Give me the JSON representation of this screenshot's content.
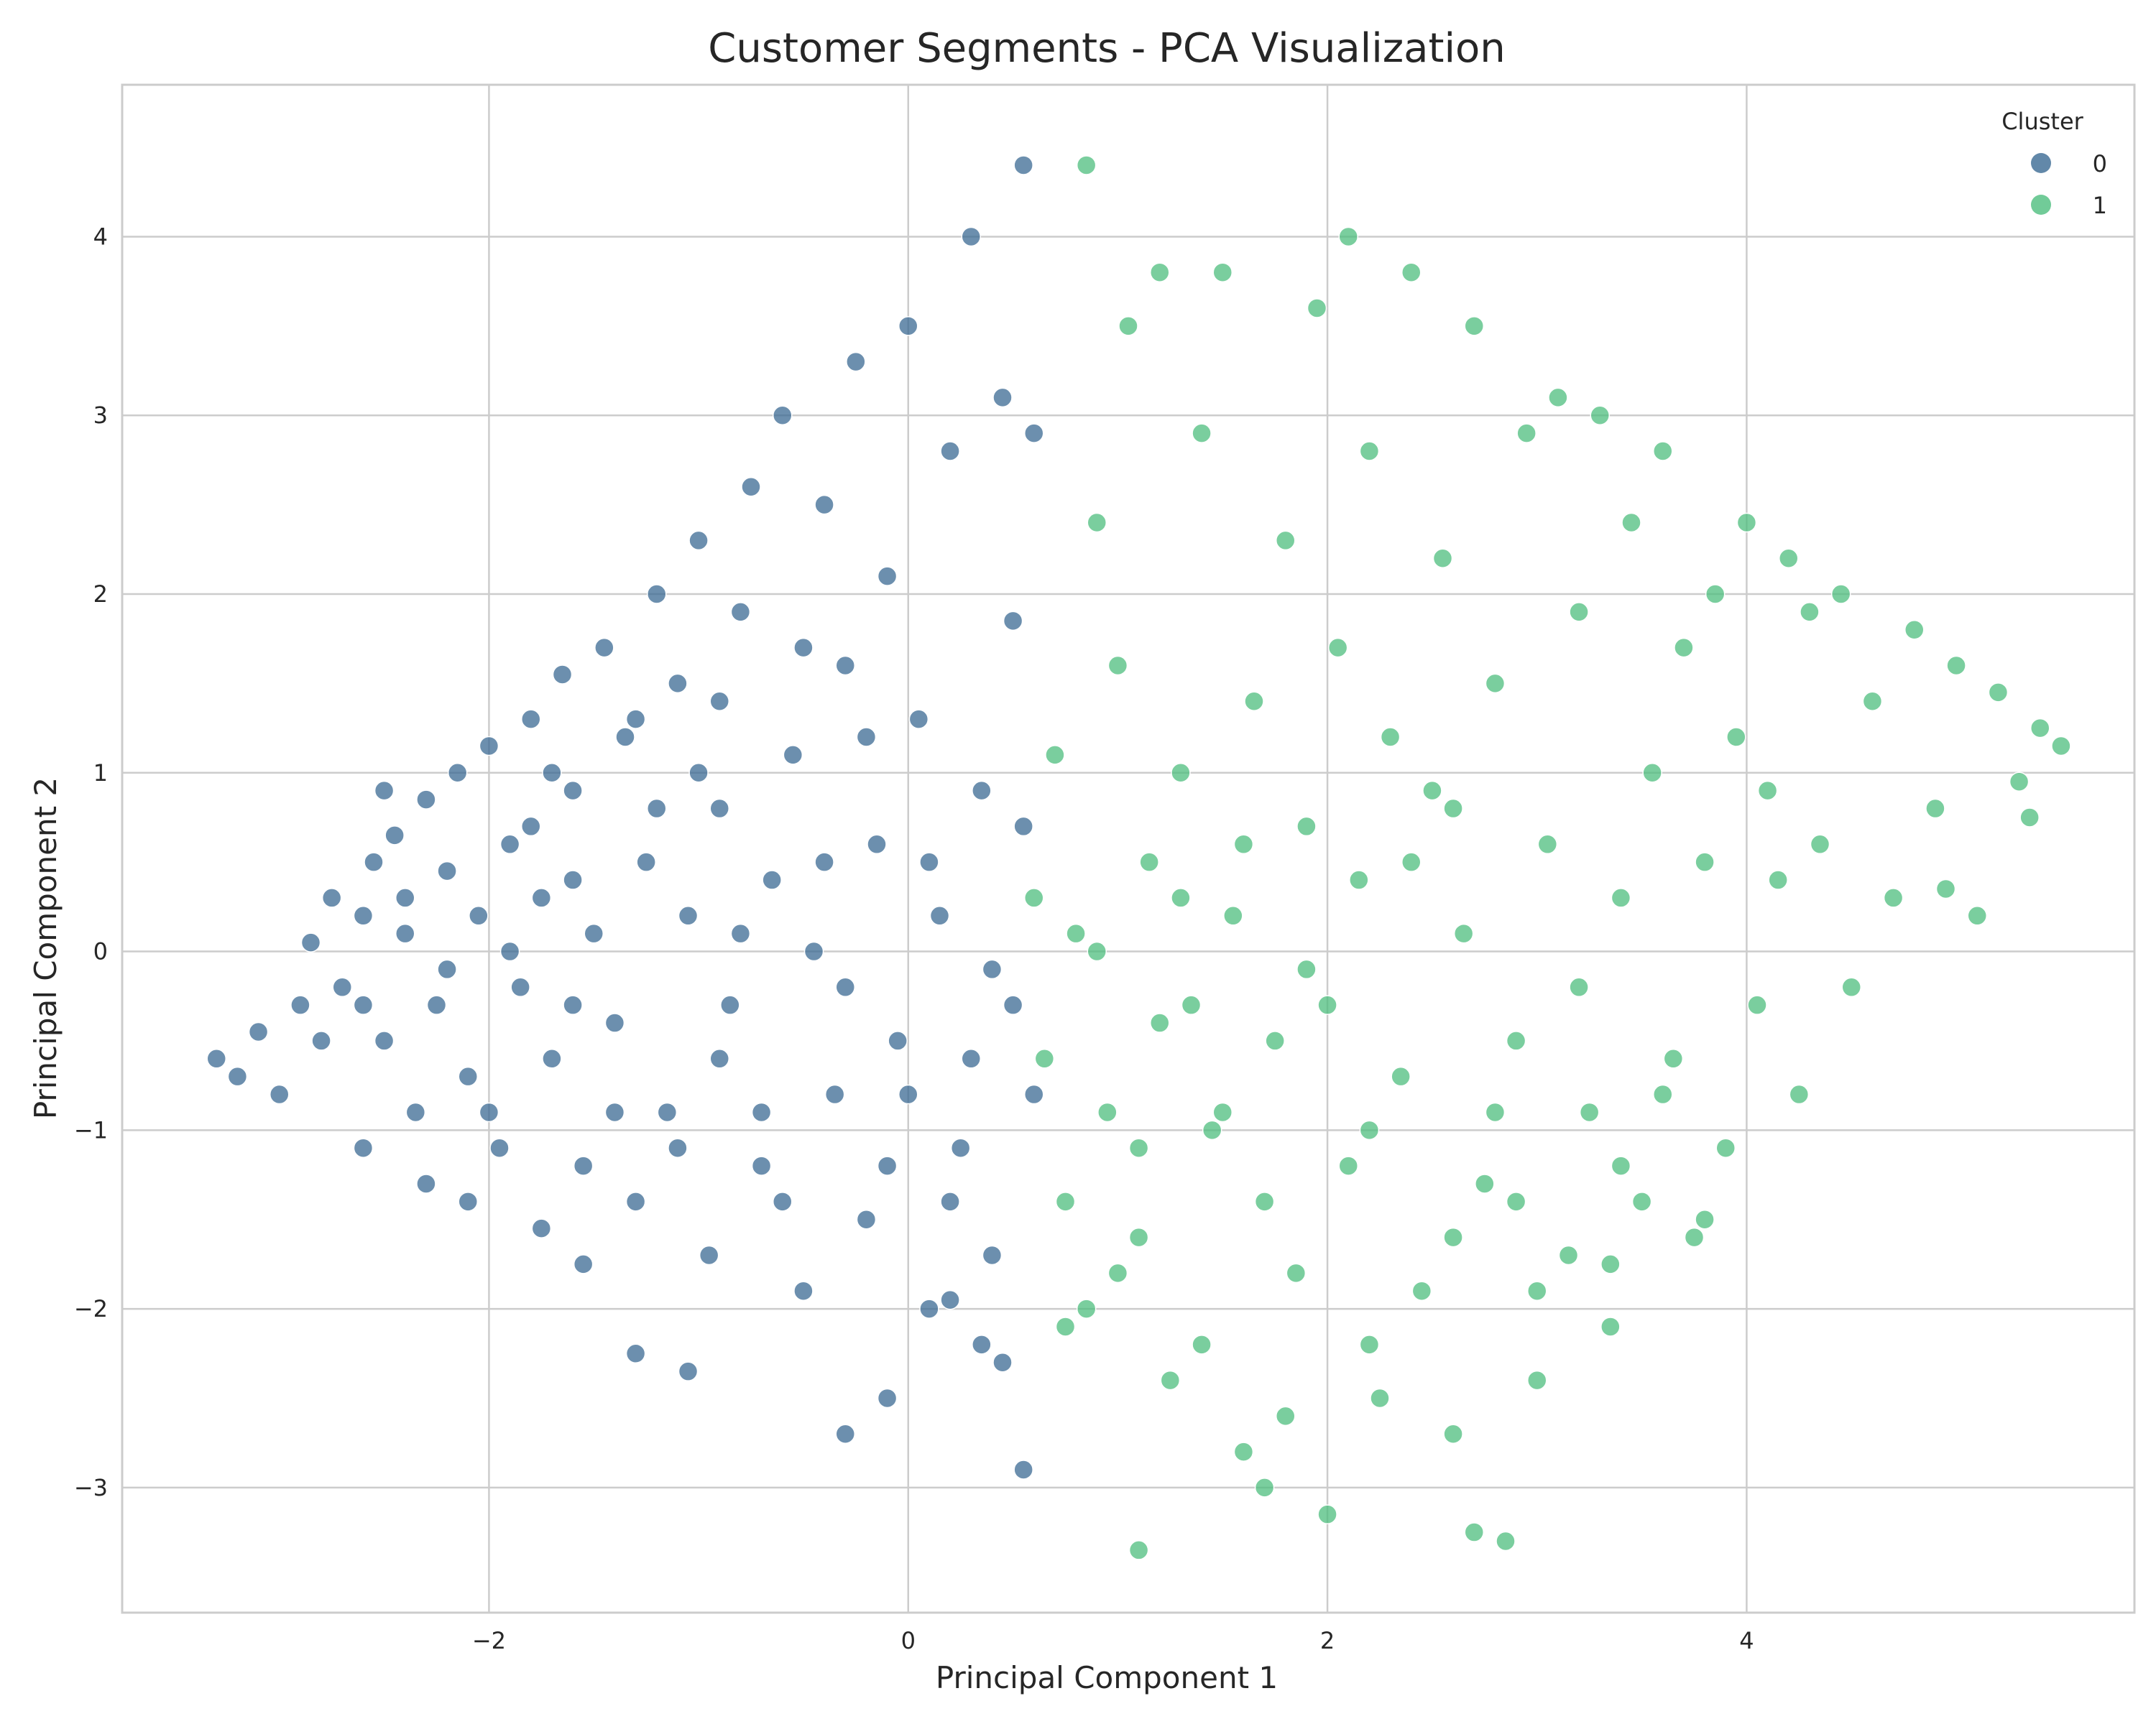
{
  "chart_data": {
    "type": "scatter",
    "title": "Customer Segments - PCA Visualization",
    "xlabel": "Principal Component 1",
    "ylabel": "Principal Component 2",
    "xlim": [
      -3.75,
      5.85
    ],
    "ylim": [
      -3.7,
      4.85
    ],
    "xticks": [
      -2,
      0,
      2,
      4
    ],
    "yticks": [
      -3,
      -2,
      -1,
      0,
      1,
      2,
      3,
      4
    ],
    "xtick_labels": [
      "−2",
      "0",
      "2",
      "4"
    ],
    "ytick_labels": [
      "−3",
      "−2",
      "−1",
      "0",
      "1",
      "2",
      "3",
      "4"
    ],
    "grid": true,
    "legend": {
      "title": "Cluster",
      "placement": "top-right"
    },
    "series": [
      {
        "name": "0",
        "color": "#3b6a93",
        "points": [
          [
            -3.3,
            -0.6
          ],
          [
            -3.2,
            -0.7
          ],
          [
            -3.0,
            -0.8
          ],
          [
            -3.1,
            -0.45
          ],
          [
            -2.9,
            -0.3
          ],
          [
            -2.85,
            0.05
          ],
          [
            -2.75,
            0.3
          ],
          [
            -2.7,
            -0.2
          ],
          [
            -2.6,
            0.2
          ],
          [
            -2.55,
            0.5
          ],
          [
            -2.5,
            -0.5
          ],
          [
            -2.45,
            0.65
          ],
          [
            -2.4,
            0.1
          ],
          [
            -2.35,
            -0.9
          ],
          [
            -2.3,
            0.85
          ],
          [
            -2.25,
            -0.3
          ],
          [
            -2.2,
            0.45
          ],
          [
            -2.15,
            1.0
          ],
          [
            -2.1,
            -0.7
          ],
          [
            -2.05,
            0.2
          ],
          [
            -2.0,
            1.15
          ],
          [
            -1.95,
            -1.1
          ],
          [
            -1.9,
            0.6
          ],
          [
            -1.85,
            -0.2
          ],
          [
            -1.8,
            1.3
          ],
          [
            -1.75,
            0.3
          ],
          [
            -1.7,
            -0.6
          ],
          [
            -1.65,
            1.55
          ],
          [
            -1.6,
            0.9
          ],
          [
            -1.55,
            -1.2
          ],
          [
            -1.5,
            0.1
          ],
          [
            -1.45,
            1.7
          ],
          [
            -1.4,
            -0.4
          ],
          [
            -1.35,
            1.2
          ],
          [
            -1.3,
            -1.4
          ],
          [
            -1.25,
            0.5
          ],
          [
            -1.2,
            2.0
          ],
          [
            -1.15,
            -0.9
          ],
          [
            -1.1,
            1.5
          ],
          [
            -1.05,
            0.2
          ],
          [
            -1.0,
            2.3
          ],
          [
            -0.95,
            -1.7
          ],
          [
            -0.9,
            0.8
          ],
          [
            -0.85,
            -0.3
          ],
          [
            -0.8,
            1.9
          ],
          [
            -0.75,
            2.6
          ],
          [
            -0.7,
            -1.2
          ],
          [
            -0.65,
            0.4
          ],
          [
            -0.6,
            3.0
          ],
          [
            -0.55,
            1.1
          ],
          [
            -0.5,
            -1.9
          ],
          [
            -0.45,
            0.0
          ],
          [
            -0.4,
            2.5
          ],
          [
            -0.35,
            -0.8
          ],
          [
            -0.3,
            1.6
          ],
          [
            -0.25,
            3.3
          ],
          [
            -0.2,
            -1.5
          ],
          [
            -0.15,
            0.6
          ],
          [
            -0.1,
            2.1
          ],
          [
            -0.05,
            -0.5
          ],
          [
            0.0,
            3.5
          ],
          [
            0.05,
            1.3
          ],
          [
            0.1,
            -2.0
          ],
          [
            0.15,
            0.2
          ],
          [
            0.2,
            2.8
          ],
          [
            0.25,
            -1.1
          ],
          [
            0.3,
            4.0
          ],
          [
            0.35,
            0.9
          ],
          [
            0.4,
            -1.7
          ],
          [
            0.45,
            3.1
          ],
          [
            0.5,
            -0.3
          ],
          [
            0.55,
            0.7
          ],
          [
            0.55,
            -2.9
          ],
          [
            0.55,
            4.4
          ],
          [
            0.45,
            -2.3
          ],
          [
            0.35,
            -2.2
          ],
          [
            0.2,
            -1.95
          ],
          [
            -0.3,
            -2.7
          ],
          [
            -1.3,
            -2.25
          ],
          [
            -1.05,
            -2.35
          ],
          [
            -0.1,
            -2.5
          ],
          [
            0.6,
            2.9
          ],
          [
            0.6,
            -0.8
          ],
          [
            0.5,
            1.85
          ],
          [
            0.4,
            -0.1
          ],
          [
            -2.6,
            -1.1
          ],
          [
            -2.3,
            -1.3
          ],
          [
            -2.1,
            -1.4
          ],
          [
            -1.75,
            -1.55
          ],
          [
            -1.55,
            -1.75
          ],
          [
            -1.9,
            0.0
          ],
          [
            -2.0,
            -0.9
          ],
          [
            -1.2,
            0.8
          ],
          [
            -0.9,
            -0.6
          ],
          [
            -0.4,
            0.5
          ],
          [
            -0.6,
            -1.4
          ],
          [
            -1.6,
            0.4
          ],
          [
            -0.2,
            1.2
          ],
          [
            -1.4,
            -0.9
          ],
          [
            -0.8,
            0.1
          ],
          [
            -2.8,
            -0.5
          ],
          [
            -2.6,
            -0.3
          ],
          [
            -2.4,
            0.3
          ],
          [
            -2.2,
            -0.1
          ],
          [
            -1.8,
            0.7
          ],
          [
            -1.6,
            -0.3
          ],
          [
            -1.0,
            1.0
          ],
          [
            -0.3,
            -0.2
          ],
          [
            0.1,
            0.5
          ],
          [
            0.3,
            -0.6
          ],
          [
            -1.1,
            -1.1
          ],
          [
            -0.7,
            -0.9
          ],
          [
            -0.1,
            -1.2
          ],
          [
            0.2,
            -1.4
          ],
          [
            -1.3,
            1.3
          ],
          [
            -0.5,
            1.7
          ],
          [
            0.0,
            -0.8
          ],
          [
            -2.5,
            0.9
          ],
          [
            -1.7,
            1.0
          ],
          [
            -0.9,
            1.4
          ]
        ]
      },
      {
        "name": "1",
        "color": "#4dbe7e",
        "points": [
          [
            0.6,
            0.3
          ],
          [
            0.65,
            -0.6
          ],
          [
            0.7,
            1.1
          ],
          [
            0.75,
            -1.4
          ],
          [
            0.8,
            0.1
          ],
          [
            0.85,
            4.4
          ],
          [
            0.85,
            -2.0
          ],
          [
            0.9,
            2.4
          ],
          [
            0.95,
            -0.9
          ],
          [
            1.0,
            1.6
          ],
          [
            1.05,
            3.5
          ],
          [
            1.1,
            -3.35
          ],
          [
            1.1,
            -1.6
          ],
          [
            1.15,
            0.5
          ],
          [
            1.2,
            3.8
          ],
          [
            1.25,
            -2.4
          ],
          [
            1.3,
            1.0
          ],
          [
            1.35,
            -0.3
          ],
          [
            1.4,
            2.9
          ],
          [
            1.45,
            -1.0
          ],
          [
            1.5,
            3.8
          ],
          [
            1.55,
            0.2
          ],
          [
            1.6,
            -2.8
          ],
          [
            1.65,
            1.4
          ],
          [
            1.7,
            -3.0
          ],
          [
            1.75,
            -0.5
          ],
          [
            1.8,
            2.3
          ],
          [
            1.85,
            -1.8
          ],
          [
            1.9,
            0.7
          ],
          [
            1.95,
            3.6
          ],
          [
            2.0,
            -3.15
          ],
          [
            2.05,
            1.7
          ],
          [
            2.1,
            -1.2
          ],
          [
            2.1,
            4.0
          ],
          [
            2.15,
            0.4
          ],
          [
            2.2,
            2.8
          ],
          [
            2.25,
            -2.5
          ],
          [
            2.3,
            1.2
          ],
          [
            2.35,
            -0.7
          ],
          [
            2.4,
            3.8
          ],
          [
            2.45,
            -1.9
          ],
          [
            2.5,
            0.9
          ],
          [
            2.55,
            2.2
          ],
          [
            2.6,
            -2.7
          ],
          [
            2.65,
            0.1
          ],
          [
            2.7,
            3.5
          ],
          [
            2.7,
            -3.25
          ],
          [
            2.75,
            -1.3
          ],
          [
            2.8,
            1.5
          ],
          [
            2.85,
            -3.3
          ],
          [
            2.9,
            -0.5
          ],
          [
            2.95,
            2.9
          ],
          [
            3.0,
            -2.4
          ],
          [
            3.05,
            0.6
          ],
          [
            3.1,
            3.1
          ],
          [
            3.15,
            -1.7
          ],
          [
            3.2,
            1.9
          ],
          [
            3.25,
            -0.9
          ],
          [
            3.3,
            3.0
          ],
          [
            3.35,
            -2.1
          ],
          [
            3.4,
            0.3
          ],
          [
            3.45,
            2.4
          ],
          [
            3.5,
            -1.4
          ],
          [
            3.55,
            1.0
          ],
          [
            3.6,
            2.8
          ],
          [
            3.65,
            -0.6
          ],
          [
            3.7,
            1.7
          ],
          [
            3.75,
            -1.6
          ],
          [
            3.8,
            0.5
          ],
          [
            3.85,
            2.0
          ],
          [
            3.9,
            -1.1
          ],
          [
            3.95,
            1.2
          ],
          [
            4.0,
            2.4
          ],
          [
            4.05,
            -0.3
          ],
          [
            4.1,
            0.9
          ],
          [
            4.2,
            2.2
          ],
          [
            4.25,
            -0.8
          ],
          [
            4.3,
            1.9
          ],
          [
            4.35,
            0.6
          ],
          [
            4.45,
            2.0
          ],
          [
            4.5,
            -0.2
          ],
          [
            4.6,
            1.4
          ],
          [
            4.7,
            0.3
          ],
          [
            4.8,
            1.8
          ],
          [
            4.9,
            0.8
          ],
          [
            5.0,
            1.6
          ],
          [
            5.1,
            0.2
          ],
          [
            5.2,
            1.45
          ],
          [
            5.3,
            0.95
          ],
          [
            5.4,
            1.25
          ],
          [
            5.5,
            1.15
          ],
          [
            5.35,
            0.75
          ],
          [
            4.95,
            0.35
          ],
          [
            4.15,
            0.4
          ],
          [
            3.35,
            -1.75
          ],
          [
            3.0,
            -1.9
          ],
          [
            2.6,
            -1.6
          ],
          [
            2.2,
            -2.2
          ],
          [
            1.8,
            -2.6
          ],
          [
            1.4,
            -2.2
          ],
          [
            1.0,
            -1.8
          ],
          [
            0.75,
            -2.1
          ],
          [
            1.2,
            -0.4
          ],
          [
            1.5,
            -0.9
          ],
          [
            2.0,
            -0.3
          ],
          [
            2.4,
            0.5
          ],
          [
            2.8,
            -0.9
          ],
          [
            3.2,
            -0.2
          ],
          [
            3.6,
            -0.8
          ],
          [
            1.3,
            0.3
          ],
          [
            0.9,
            0.0
          ],
          [
            1.1,
            -1.1
          ],
          [
            1.7,
            -1.4
          ],
          [
            2.2,
            -1.0
          ],
          [
            2.9,
            -1.4
          ],
          [
            3.4,
            -1.2
          ],
          [
            3.8,
            -1.5
          ],
          [
            1.6,
            0.6
          ],
          [
            2.6,
            0.8
          ],
          [
            1.9,
            -0.1
          ]
        ]
      }
    ]
  }
}
